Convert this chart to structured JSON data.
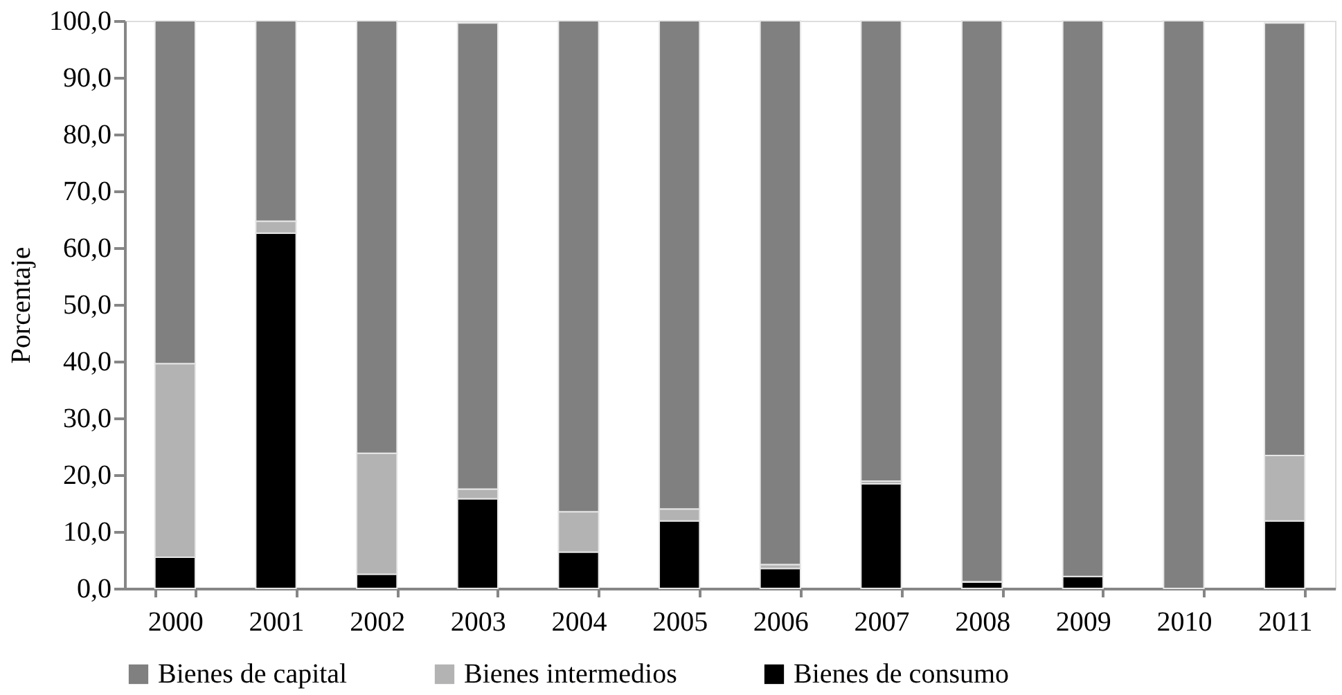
{
  "chart_data": {
    "type": "bar",
    "stacked": true,
    "ylabel": "Porcentaje",
    "categories": [
      "2000",
      "2001",
      "2002",
      "2003",
      "2004",
      "2005",
      "2006",
      "2007",
      "2008",
      "2009",
      "2010",
      "2011"
    ],
    "series": [
      {
        "name": "Bienes de consumo",
        "color": "#000000",
        "values": [
          5.5,
          62.6,
          2.5,
          15.8,
          6.4,
          11.9,
          3.5,
          18.4,
          1.1,
          2.1,
          null,
          11.9
        ]
      },
      {
        "name": "Bienes intermedios",
        "color": "#b3b3b3",
        "values": [
          34.1,
          2.1,
          21.3,
          1.7,
          7.1,
          2.1,
          0.7,
          0.5,
          0.1,
          0.0,
          null,
          11.5
        ]
      },
      {
        "name": "Bienes de capital",
        "color": "#808080",
        "values": [
          60.4,
          35.3,
          76.2,
          82.1,
          86.5,
          86.0,
          95.8,
          81.1,
          98.8,
          97.9,
          100.0,
          76.2
        ]
      }
    ],
    "ylim": [
      0,
      100
    ],
    "yticks": [
      {
        "value": 0,
        "label": "0,0"
      },
      {
        "value": 10,
        "label": "10,0"
      },
      {
        "value": 20,
        "label": "20,0"
      },
      {
        "value": 30,
        "label": "30,0"
      },
      {
        "value": 40,
        "label": "40,0"
      },
      {
        "value": 50,
        "label": "50,0"
      },
      {
        "value": 60,
        "label": "60,0"
      },
      {
        "value": 70,
        "label": "70,0"
      },
      {
        "value": 80,
        "label": "80,0"
      },
      {
        "value": 90,
        "label": "90,0"
      },
      {
        "value": 100,
        "label": "100,0"
      }
    ],
    "grid": false,
    "legend": "bottom"
  }
}
